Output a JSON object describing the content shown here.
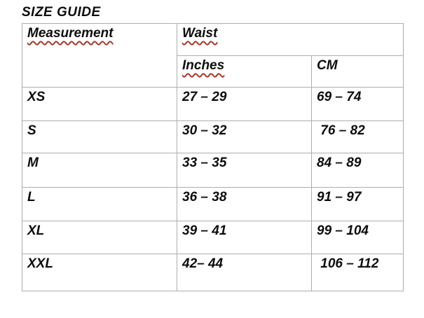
{
  "page": {
    "title": "SIZE GUIDE",
    "background_color": "#ffffff",
    "text_color": "#0d0d0d",
    "border_color": "#adadad",
    "squiggle_color": "#a8382c"
  },
  "table": {
    "header": {
      "measurement_label": "Measurement",
      "group_label": "Waist",
      "inches_label": "Inches",
      "cm_label": "CM"
    },
    "rows": [
      {
        "size": "XS",
        "inches": "27 – 29",
        "cm": "69 – 74"
      },
      {
        "size": "S",
        "inches": "30 – 32",
        "cm": " 76 – 82"
      },
      {
        "size": "M",
        "inches": "33 – 35",
        "cm": "84 – 89"
      },
      {
        "size": "L",
        "inches": "36 – 38",
        "cm": "91 – 97"
      },
      {
        "size": "XL",
        "inches": "39 – 41",
        "cm": "99 – 104"
      },
      {
        "size": "XXL",
        "inches": "42– 44",
        "cm": " 106 – 112"
      }
    ]
  }
}
